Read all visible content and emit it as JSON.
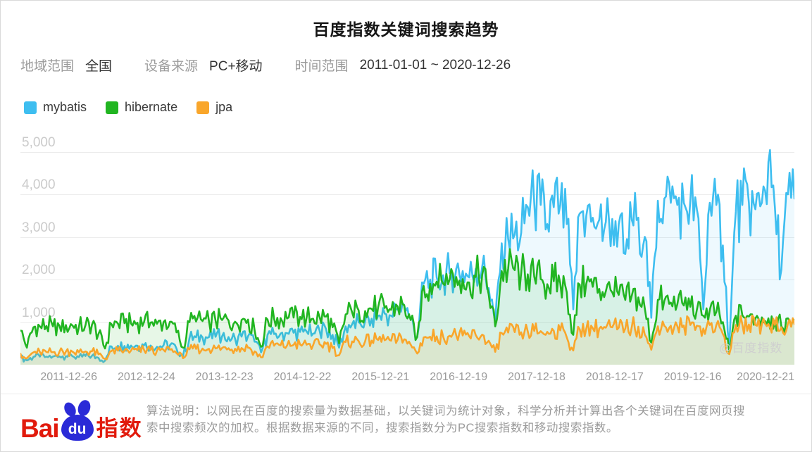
{
  "title": "百度指数关键词搜索趋势",
  "filters": [
    {
      "label": "地域范围",
      "value": "全国"
    },
    {
      "label": "设备来源",
      "value": "PC+移动"
    },
    {
      "label": "时间范围",
      "value": "2011-01-01 ~ 2020-12-26"
    }
  ],
  "watermark": "@百度指数",
  "footer": {
    "logo": {
      "bai": "Bai",
      "du": "du",
      "suffix": "指数"
    },
    "line1": "算法说明：以网民在百度的搜索量为数据基础，以关键词为统计对象，科学分析并计算出各个关键词在百度网页搜",
    "line2": "索中搜索频次的加权。根据数据来源的不同，搜索指数分为PC搜索指数和移动搜索指数。"
  },
  "chart_data": {
    "type": "line",
    "title": "百度指数关键词搜索趋势",
    "x_interval": "monthly",
    "x_start": "2011-01",
    "x_end": "2020-12",
    "x_tick_labels": [
      "2011-12-26",
      "2012-12-24",
      "2013-12-23",
      "2014-12-22",
      "2015-12-21",
      "2016-12-19",
      "2017-12-18",
      "2018-12-17",
      "2019-12-16",
      "2020-12-21"
    ],
    "y_tick_labels": [
      "1,000",
      "2,000",
      "3,000",
      "4,000",
      "5,000"
    ],
    "y_tick_values": [
      1000,
      2000,
      3000,
      4000,
      5000
    ],
    "ylim": [
      0,
      5000
    ],
    "grid": true,
    "legend_position": "top-left",
    "series": [
      {
        "name": "mybatis",
        "color": "#3EBEF0",
        "area_opacity": 0.09,
        "values": [
          170,
          100,
          185,
          190,
          188,
          192,
          195,
          200,
          198,
          182,
          205,
          210,
          160,
          95,
          430,
          445,
          440,
          450,
          445,
          455,
          450,
          420,
          455,
          460,
          380,
          200,
          630,
          645,
          640,
          650,
          655,
          665,
          650,
          610,
          660,
          670,
          540,
          290,
          700,
          720,
          730,
          740,
          750,
          770,
          780,
          730,
          800,
          830,
          700,
          400,
          900,
          950,
          1000,
          1030,
          1080,
          1150,
          1200,
          1150,
          1300,
          1400,
          1100,
          650,
          1900,
          2000,
          2050,
          2100,
          2150,
          2250,
          2200,
          2050,
          2250,
          2300,
          1800,
          1000,
          2850,
          2950,
          3050,
          3100,
          3700,
          3800,
          3750,
          3300,
          3700,
          3750,
          3300,
          1300,
          3550,
          3500,
          3450,
          3400,
          3350,
          3420,
          3300,
          2600,
          3400,
          3450,
          3000,
          1100,
          3850,
          3900,
          3800,
          3750,
          3800,
          3850,
          3650,
          1300,
          3800,
          3750,
          2800,
          450,
          3600,
          3750,
          3800,
          3650,
          3800,
          4760,
          3700,
          2230,
          4000,
          3900
        ]
      },
      {
        "name": "hibernate",
        "color": "#21B521",
        "area_opacity": 0.11,
        "values": [
          800,
          400,
          880,
          900,
          910,
          900,
          915,
          930,
          920,
          890,
          930,
          940,
          720,
          380,
          950,
          965,
          975,
          965,
          985,
          1000,
          990,
          960,
          1000,
          1010,
          760,
          400,
          1000,
          1015,
          1025,
          1015,
          1035,
          1050,
          1040,
          1010,
          1050,
          1060,
          810,
          420,
          1060,
          1080,
          1095,
          1085,
          1105,
          1120,
          1110,
          1080,
          1120,
          1130,
          880,
          500,
          1180,
          1230,
          1280,
          1260,
          1310,
          1350,
          1330,
          1290,
          1370,
          1400,
          1050,
          650,
          1850,
          1900,
          1950,
          1900,
          2000,
          2060,
          2010,
          1930,
          2060,
          2110,
          1650,
          900,
          2200,
          2260,
          2220,
          2170,
          2120,
          2070,
          2010,
          1890,
          1960,
          1920,
          1700,
          700,
          1880,
          1900,
          1830,
          1780,
          1720,
          1700,
          1640,
          1520,
          1620,
          1580,
          1320,
          520,
          1520,
          1500,
          1460,
          1420,
          1390,
          1360,
          1290,
          1150,
          1290,
          1240,
          1000,
          300,
          1150,
          1160,
          1130,
          1090,
          1110,
          1090,
          1030,
          900,
          1090,
          1050
        ]
      },
      {
        "name": "jpa",
        "color": "#F9A62B",
        "area_opacity": 0.12,
        "values": [
          260,
          150,
          290,
          295,
          300,
          295,
          302,
          310,
          305,
          292,
          310,
          315,
          245,
          140,
          322,
          330,
          336,
          330,
          340,
          348,
          342,
          330,
          348,
          352,
          272,
          152,
          362,
          372,
          378,
          372,
          382,
          392,
          386,
          374,
          392,
          400,
          312,
          172,
          432,
          446,
          456,
          450,
          466,
          476,
          470,
          458,
          480,
          490,
          392,
          222,
          532,
          546,
          556,
          550,
          566,
          580,
          574,
          564,
          586,
          596,
          472,
          262,
          642,
          656,
          666,
          660,
          680,
          692,
          686,
          670,
          696,
          706,
          562,
          302,
          742,
          756,
          766,
          760,
          780,
          792,
          786,
          770,
          796,
          806,
          642,
          332,
          832,
          846,
          856,
          850,
          870,
          880,
          870,
          852,
          886,
          892,
          702,
          352,
          902,
          912,
          916,
          906,
          922,
          932,
          916,
          850,
          932,
          936,
          722,
          250,
          932,
          942,
          946,
          932,
          952,
          956,
          936,
          880,
          966,
          950
        ]
      }
    ]
  }
}
